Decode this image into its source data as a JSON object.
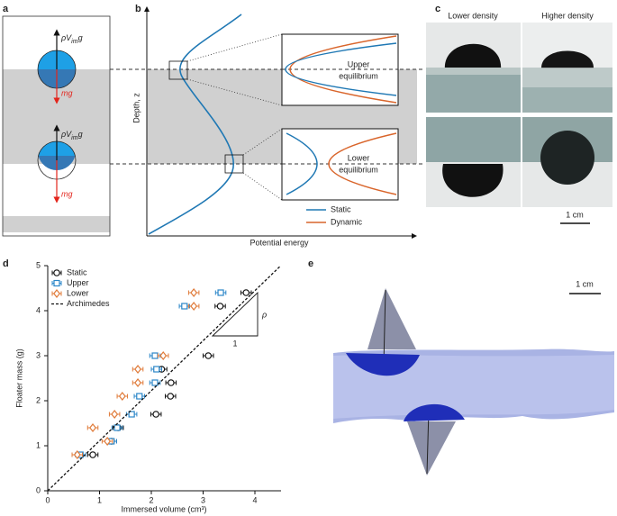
{
  "figure": {
    "panel_labels": [
      "a",
      "b",
      "c",
      "d",
      "e"
    ],
    "a": {
      "buoyancy": [
        "ρV",
        "im",
        "g"
      ],
      "weight": "mg"
    },
    "b": {
      "y_label": "Depth, z",
      "x_label": "Potential energy",
      "upper": [
        "Upper",
        "equilibrium"
      ],
      "lower": [
        "Lower",
        "equilibrium"
      ],
      "legend": [
        "Static",
        "Dynamic"
      ]
    },
    "c": {
      "left": "Lower density",
      "right": "Higher density",
      "scale": "1 cm"
    },
    "d": {
      "slope": "ρ",
      "run": "1"
    },
    "e": {
      "scale": "1 cm"
    }
  },
  "chart_data": {
    "type": "scatter",
    "xlabel": "Immersed volume (cm³)",
    "ylabel": "Floater mass (g)",
    "xlim": [
      0,
      4.5
    ],
    "ylim": [
      0,
      5
    ],
    "xticks": [
      0,
      1,
      2,
      3,
      4
    ],
    "yticks": [
      0,
      1,
      2,
      3,
      4,
      5
    ],
    "series": [
      {
        "name": "Static",
        "color": "#111111",
        "marker": "circle",
        "x": [
          0.87,
          1.23,
          1.36,
          2.09,
          2.37,
          2.38,
          2.2,
          3.1,
          3.33,
          3.83
        ],
        "values": [
          0.8,
          1.1,
          1.4,
          1.7,
          2.1,
          2.4,
          2.7,
          3.0,
          4.1,
          4.4
        ],
        "xerr": [
          0.1,
          0.1,
          0.1,
          0.1,
          0.1,
          0.1,
          0.1,
          0.1,
          0.1,
          0.1
        ]
      },
      {
        "name": "Upper",
        "color": "#2a86c8",
        "marker": "square",
        "x": [
          0.63,
          1.23,
          1.34,
          1.62,
          1.77,
          2.07,
          2.1,
          2.07,
          2.64,
          3.34
        ],
        "values": [
          0.8,
          1.1,
          1.4,
          1.7,
          2.1,
          2.4,
          2.7,
          3.0,
          4.1,
          4.4
        ],
        "xerr": [
          0.1,
          0.1,
          0.1,
          0.1,
          0.1,
          0.1,
          0.1,
          0.1,
          0.1,
          0.1
        ]
      },
      {
        "name": "Lower",
        "color": "#e07b3a",
        "marker": "diamond",
        "x": [
          0.57,
          1.15,
          0.87,
          1.29,
          1.44,
          1.74,
          1.74,
          2.23,
          2.82,
          2.82
        ],
        "values": [
          0.8,
          1.1,
          1.4,
          1.7,
          2.1,
          2.4,
          2.7,
          3.0,
          4.1,
          4.4
        ],
        "xerr": [
          0.1,
          0.1,
          0.1,
          0.1,
          0.1,
          0.1,
          0.1,
          0.1,
          0.1,
          0.1
        ]
      },
      {
        "name": "Archimedes",
        "color": "#111111",
        "marker": "dashed-line",
        "x": [
          0,
          4.5
        ],
        "values": [
          0,
          5
        ]
      }
    ]
  }
}
